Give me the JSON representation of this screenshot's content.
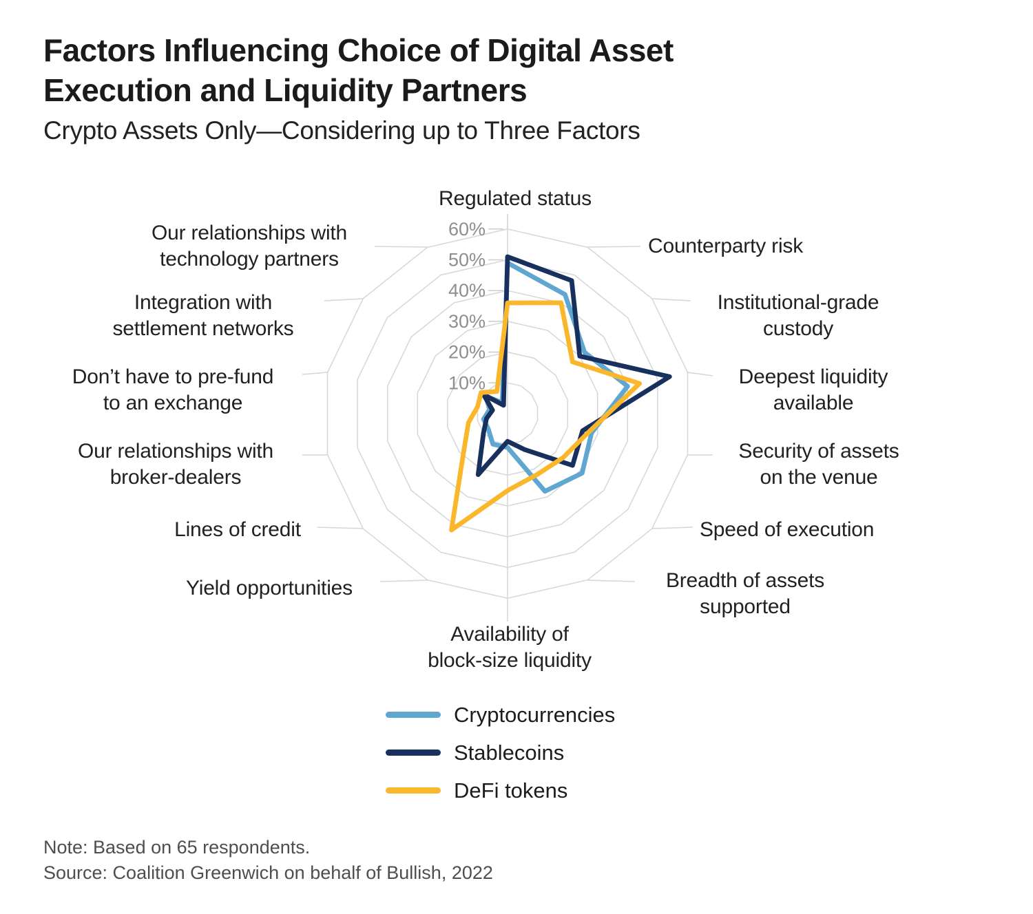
{
  "header": {
    "title_line1": "Factors Influencing Choice of Digital Asset",
    "title_line2": "Execution and Liquidity Partners",
    "subtitle": "Crypto Assets Only—Considering up to Three Factors"
  },
  "chart_data": {
    "type": "radar",
    "unit": "%",
    "axis_count": 14,
    "scale": {
      "min": 0,
      "max": 60,
      "step": 10
    },
    "rings_percent": [
      10,
      20,
      30,
      40,
      50,
      60
    ],
    "tick_labels": [
      "10%",
      "20%",
      "30%",
      "40%",
      "50%",
      "60%"
    ],
    "grid": true,
    "legend_position": "bottom",
    "axes": [
      {
        "label": "Regulated status",
        "lines": [
          "Regulated status"
        ]
      },
      {
        "label": "Counterparty risk",
        "lines": [
          "Counterparty risk"
        ]
      },
      {
        "label": "Institutional-grade custody",
        "lines": [
          "Institutional-grade",
          "custody"
        ]
      },
      {
        "label": "Deepest liquidity available",
        "lines": [
          "Deepest liquidity",
          "available"
        ]
      },
      {
        "label": "Security of assets on the venue",
        "lines": [
          "Security of assets",
          "on the venue"
        ]
      },
      {
        "label": "Speed of execution",
        "lines": [
          "Speed of execution"
        ]
      },
      {
        "label": "Breadth of assets supported",
        "lines": [
          "Breadth of assets",
          "supported"
        ]
      },
      {
        "label": "Availability of block-size liquidity",
        "lines": [
          "Availability of",
          "block-size liquidity"
        ]
      },
      {
        "label": "Yield opportunities",
        "lines": [
          "Yield opportunities"
        ]
      },
      {
        "label": "Lines of credit",
        "lines": [
          "Lines of credit"
        ]
      },
      {
        "label": "Our relationships with broker-dealers",
        "lines": [
          "Our relationships with",
          "broker-dealers"
        ]
      },
      {
        "label": "Don’t have to pre-fund to an exchange",
        "lines": [
          "Don’t have to pre-fund",
          "to an exchange"
        ]
      },
      {
        "label": "Integration with settlement networks",
        "lines": [
          "Integration with",
          "settlement networks"
        ]
      },
      {
        "label": "Our relationships with technology partners",
        "lines": [
          "Our relationships with",
          "technology partners"
        ]
      }
    ],
    "series": [
      {
        "name": "Cryptocurrencies",
        "color": "#5fa7d1",
        "values": [
          49,
          43,
          32,
          40,
          28,
          31,
          28,
          11,
          11,
          8,
          8,
          6,
          9,
          4
        ]
      },
      {
        "name": "Stablecoins",
        "color": "#18305e",
        "values": [
          51,
          48,
          30,
          54,
          25,
          27,
          13,
          9,
          22,
          10,
          7,
          5,
          10,
          3
        ]
      },
      {
        "name": "DeFi tokens",
        "color": "#fbb72c",
        "values": [
          36,
          40,
          27,
          44,
          27,
          23,
          22,
          25,
          42,
          18,
          13,
          10,
          11,
          8
        ]
      }
    ]
  },
  "footer": {
    "note": "Note: Based on 65 respondents.",
    "source": "Source: Coalition Greenwich on behalf of Bullish, 2022"
  }
}
